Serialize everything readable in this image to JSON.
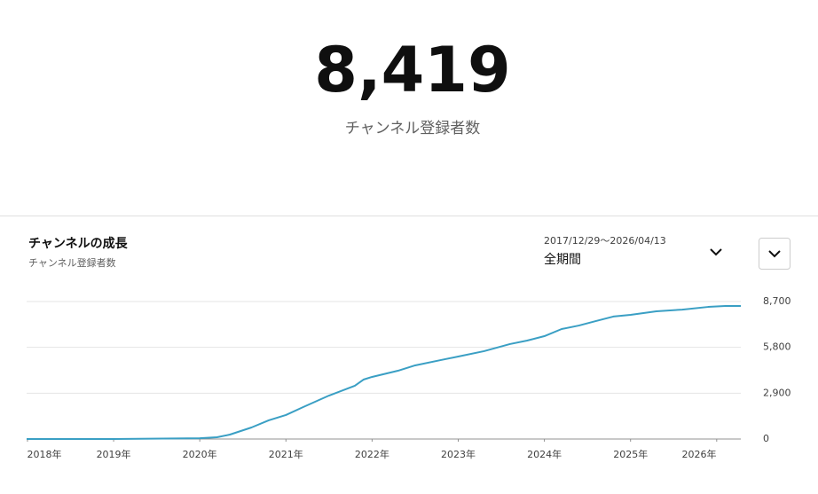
{
  "header": {
    "value": "8,419",
    "label": "チャンネル登録者数"
  },
  "card": {
    "title": "チャンネルの成長",
    "subtitle": "チャンネル登録者数",
    "date_range": "2017/12/29～2026/04/13",
    "period": "全期間"
  },
  "chart_data": {
    "type": "line",
    "color": "#3a9fc4",
    "x": [
      2017.99,
      2019.0,
      2020.0,
      2020.2,
      2020.35,
      2020.6,
      2020.8,
      2021.0,
      2021.2,
      2021.5,
      2021.8,
      2021.9,
      2022.0,
      2022.3,
      2022.5,
      2022.8,
      2023.0,
      2023.3,
      2023.6,
      2023.8,
      2024.0,
      2024.2,
      2024.4,
      2024.6,
      2024.8,
      2025.0,
      2025.3,
      2025.6,
      2025.9,
      2026.1,
      2026.28
    ],
    "values": [
      0,
      0,
      50,
      110,
      280,
      730,
      1180,
      1520,
      2020,
      2750,
      3370,
      3760,
      3930,
      4320,
      4660,
      5000,
      5220,
      5560,
      6010,
      6230,
      6510,
      6960,
      7180,
      7470,
      7750,
      7860,
      8080,
      8190,
      8360,
      8420,
      8420
    ],
    "xlim": [
      2017.99,
      2026.28
    ],
    "xticks": [
      {
        "value": 2018,
        "label": "2018年"
      },
      {
        "value": 2019,
        "label": "2019年"
      },
      {
        "value": 2020,
        "label": "2020年"
      },
      {
        "value": 2021,
        "label": "2021年"
      },
      {
        "value": 2022,
        "label": "2022年"
      },
      {
        "value": 2023,
        "label": "2023年"
      },
      {
        "value": 2024,
        "label": "2024年"
      },
      {
        "value": 2025,
        "label": "2025年"
      },
      {
        "value": 2026,
        "label": "2026年"
      }
    ],
    "ylim": [
      0,
      8700
    ],
    "yticks": [
      0,
      {
        "value": 2900,
        "label": "2,900"
      },
      {
        "value": 5800,
        "label": "5,800"
      },
      {
        "value": 8700,
        "label": "8,700"
      }
    ],
    "grid": true
  }
}
